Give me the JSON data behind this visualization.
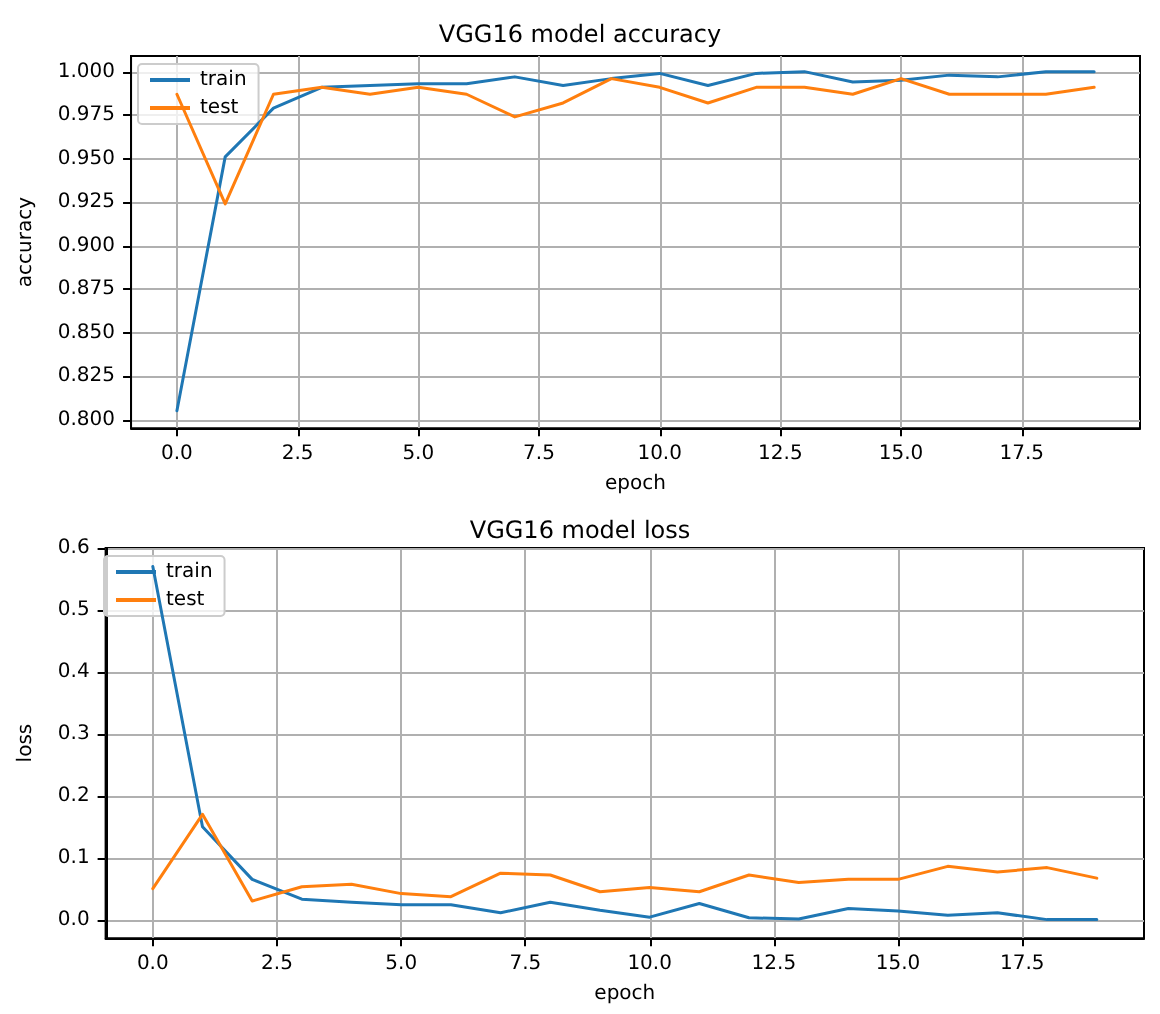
{
  "chart_data": [
    {
      "type": "line",
      "title": "VGG16 model accuracy",
      "xlabel": "epoch",
      "ylabel": "accuracy",
      "x": [
        0,
        1,
        2,
        3,
        4,
        5,
        6,
        7,
        8,
        9,
        10,
        11,
        12,
        13,
        14,
        15,
        16,
        17,
        18,
        19
      ],
      "series": [
        {
          "name": "train",
          "color": "#1f77b4",
          "values": [
            0.805,
            0.951,
            0.979,
            0.991,
            0.992,
            0.993,
            0.993,
            0.997,
            0.992,
            0.996,
            0.999,
            0.992,
            0.999,
            1.0,
            0.994,
            0.995,
            0.998,
            0.997,
            1.0,
            1.0
          ]
        },
        {
          "name": "test",
          "color": "#ff7f0e",
          "values": [
            0.987,
            0.924,
            0.987,
            0.991,
            0.987,
            0.991,
            0.987,
            0.974,
            0.982,
            0.996,
            0.991,
            0.982,
            0.991,
            0.991,
            0.987,
            0.996,
            0.987,
            0.987,
            0.987,
            0.991
          ]
        }
      ],
      "xlim": [
        -0.95,
        19.95
      ],
      "xticks": [
        {
          "value": 0,
          "label": "0.0"
        },
        {
          "value": 2.5,
          "label": "2.5"
        },
        {
          "value": 5,
          "label": "5.0"
        },
        {
          "value": 7.5,
          "label": "7.5"
        },
        {
          "value": 10,
          "label": "10.0"
        },
        {
          "value": 12.5,
          "label": "12.5"
        },
        {
          "value": 15,
          "label": "15.0"
        },
        {
          "value": 17.5,
          "label": "17.5"
        }
      ],
      "ylim": [
        0.795,
        1.009
      ],
      "yticks": [
        {
          "value": 0.8,
          "label": "0.800"
        },
        {
          "value": 0.825,
          "label": "0.825"
        },
        {
          "value": 0.85,
          "label": "0.850"
        },
        {
          "value": 0.875,
          "label": "0.875"
        },
        {
          "value": 0.9,
          "label": "0.900"
        },
        {
          "value": 0.925,
          "label": "0.925"
        },
        {
          "value": 0.95,
          "label": "0.950"
        },
        {
          "value": 0.975,
          "label": "0.975"
        },
        {
          "value": 1.0,
          "label": "1.000"
        }
      ],
      "grid": true,
      "legend": "top left",
      "marker": "none",
      "line_style": "solid"
    },
    {
      "type": "line",
      "title": "VGG16 model loss",
      "xlabel": "epoch",
      "ylabel": "loss",
      "x": [
        0,
        1,
        2,
        3,
        4,
        5,
        6,
        7,
        8,
        9,
        10,
        11,
        12,
        13,
        14,
        15,
        16,
        17,
        18,
        19
      ],
      "series": [
        {
          "name": "train",
          "color": "#1f77b4",
          "values": [
            0.57,
            0.15,
            0.065,
            0.033,
            0.028,
            0.024,
            0.024,
            0.011,
            0.028,
            0.015,
            0.004,
            0.026,
            0.003,
            0.001,
            0.018,
            0.014,
            0.007,
            0.011,
            0.0,
            0.0
          ]
        },
        {
          "name": "test",
          "color": "#ff7f0e",
          "values": [
            0.05,
            0.17,
            0.03,
            0.053,
            0.057,
            0.042,
            0.037,
            0.075,
            0.072,
            0.045,
            0.052,
            0.045,
            0.072,
            0.06,
            0.065,
            0.065,
            0.086,
            0.077,
            0.084,
            0.067
          ]
        }
      ],
      "xlim": [
        -0.95,
        19.95
      ],
      "xticks": [
        {
          "value": 0,
          "label": "0.0"
        },
        {
          "value": 2.5,
          "label": "2.5"
        },
        {
          "value": 5,
          "label": "5.0"
        },
        {
          "value": 7.5,
          "label": "7.5"
        },
        {
          "value": 10,
          "label": "10.0"
        },
        {
          "value": 12.5,
          "label": "12.5"
        },
        {
          "value": 15,
          "label": "15.0"
        },
        {
          "value": 17.5,
          "label": "17.5"
        }
      ],
      "ylim": [
        -0.03,
        0.6
      ],
      "yticks": [
        {
          "value": 0,
          "label": "0.0"
        },
        {
          "value": 0.1,
          "label": "0.1"
        },
        {
          "value": 0.2,
          "label": "0.2"
        },
        {
          "value": 0.3,
          "label": "0.3"
        },
        {
          "value": 0.4,
          "label": "0.4"
        },
        {
          "value": 0.5,
          "label": "0.5"
        },
        {
          "value": 0.6,
          "label": "0.6"
        }
      ],
      "grid": true,
      "legend": "top left",
      "marker": "none",
      "line_style": "solid"
    }
  ]
}
